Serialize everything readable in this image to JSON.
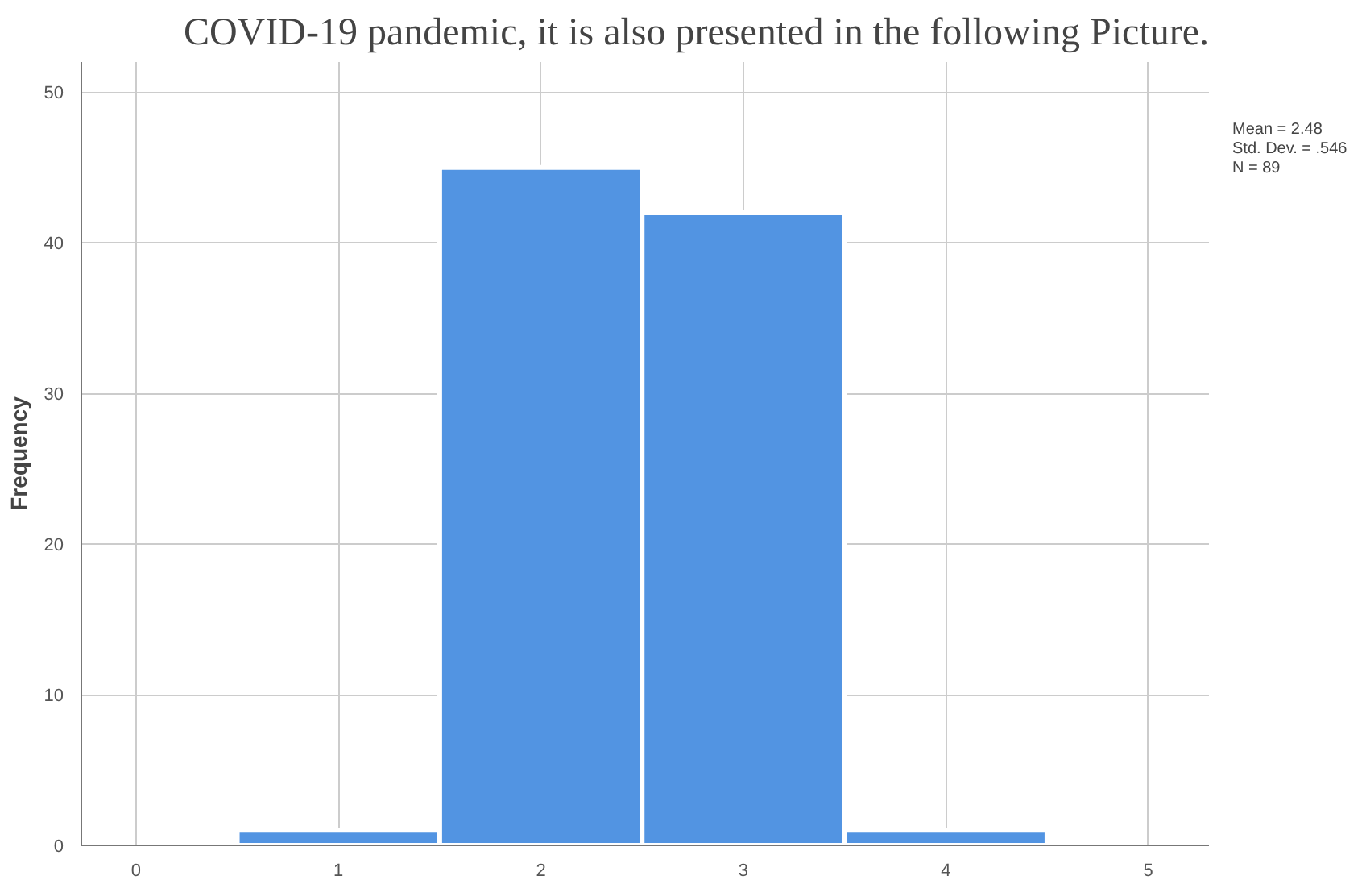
{
  "chart_data": {
    "type": "histogram",
    "title": "COVID-19 pandemic, it is also presented in the following Picture.",
    "ylabel": "Frequency",
    "bins": [
      0.5,
      1.5,
      2.5,
      3.5,
      4.5
    ],
    "values": [
      1,
      45,
      42,
      1
    ],
    "color": "#5294e2",
    "xlim": [
      -0.27,
      5.3
    ],
    "xticks": [
      0,
      1,
      2,
      3,
      4,
      5
    ],
    "ylim": [
      0,
      52
    ],
    "yticks": [
      0,
      10,
      20,
      30,
      40,
      50
    ],
    "grid": true,
    "annotations": [
      "Mean = 2.48",
      "Std. Dev. = .546",
      "N = 89"
    ]
  }
}
